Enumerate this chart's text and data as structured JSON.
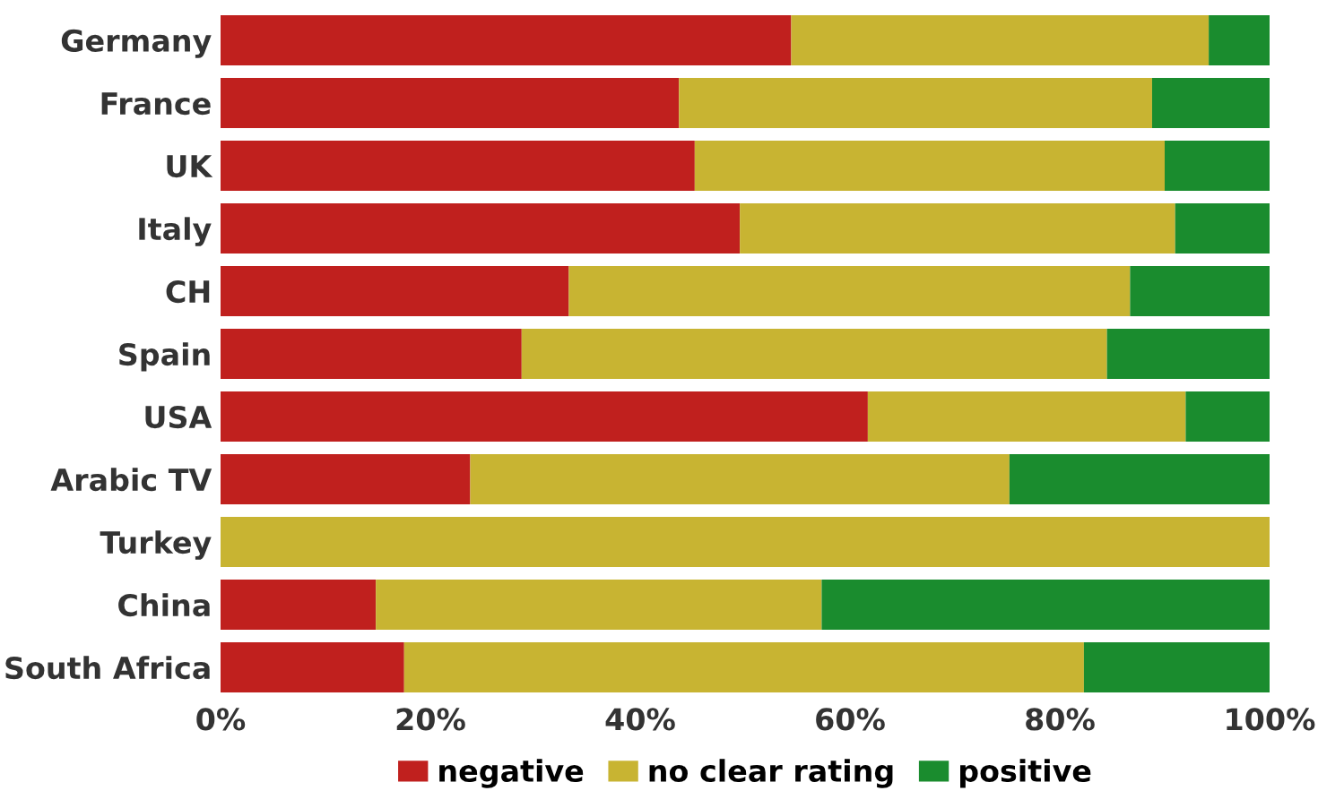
{
  "chart_data": {
    "type": "bar",
    "orientation": "horizontal",
    "stacked": true,
    "categories": [
      "Germany",
      "France",
      "UK",
      "Italy",
      "CH",
      "Spain",
      "USA",
      "Arabic TV",
      "Turkey",
      "China",
      "South Africa"
    ],
    "series": [
      {
        "name": "negative",
        "color": "#c0201e",
        "values": [
          54.4,
          43.7,
          45.2,
          49.5,
          33.2,
          28.7,
          61.7,
          23.8,
          0,
          14.8,
          17.5
        ]
      },
      {
        "name": "no clear rating",
        "color": "#c8b432",
        "values": [
          39.8,
          45.1,
          44.8,
          41.5,
          53.5,
          55.8,
          30.3,
          51.4,
          100,
          42.5,
          64.8
        ]
      },
      {
        "name": "positive",
        "color": "#1a8c2e",
        "values": [
          5.8,
          11.2,
          10.0,
          9.0,
          13.3,
          15.5,
          8.0,
          24.8,
          0,
          42.7,
          17.7
        ]
      }
    ],
    "xlim": [
      0,
      100
    ],
    "xticks": [
      {
        "value": 0,
        "label": "0%"
      },
      {
        "value": 20,
        "label": "20%"
      },
      {
        "value": 40,
        "label": "40%"
      },
      {
        "value": 60,
        "label": "60%"
      },
      {
        "value": 80,
        "label": "80%"
      },
      {
        "value": 100,
        "label": "100%"
      }
    ],
    "legend": "bottom",
    "grid": false
  }
}
